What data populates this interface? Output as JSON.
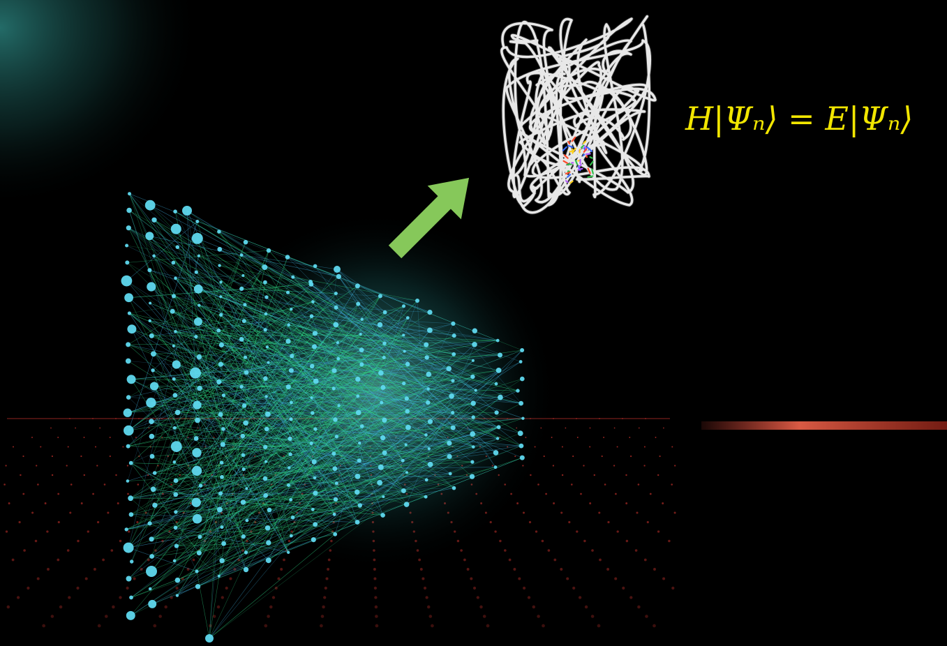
{
  "equation": {
    "text": "H|Ψₙ⟩ = E|Ψₙ⟩",
    "color": "#f2e600"
  },
  "colors": {
    "background": "#000000",
    "corner_glow": "#2f8f8a",
    "network_node": "#5fd8ee",
    "edge_green": "#2fe08a",
    "edge_blue": "#3fb0e0",
    "lattice": "#c0302a",
    "arrow": "#86c85a",
    "protein_tube": "#e8e8e8",
    "ligand": [
      "#3a6cff",
      "#ffd21f",
      "#ff4a2a",
      "#2fbf4a",
      "#b45cff"
    ]
  },
  "icons": {
    "network": "neural-network-graph",
    "arrow": "diagonal-arrow",
    "protein": "protein-ribbon",
    "lattice": "lattice-grid"
  }
}
